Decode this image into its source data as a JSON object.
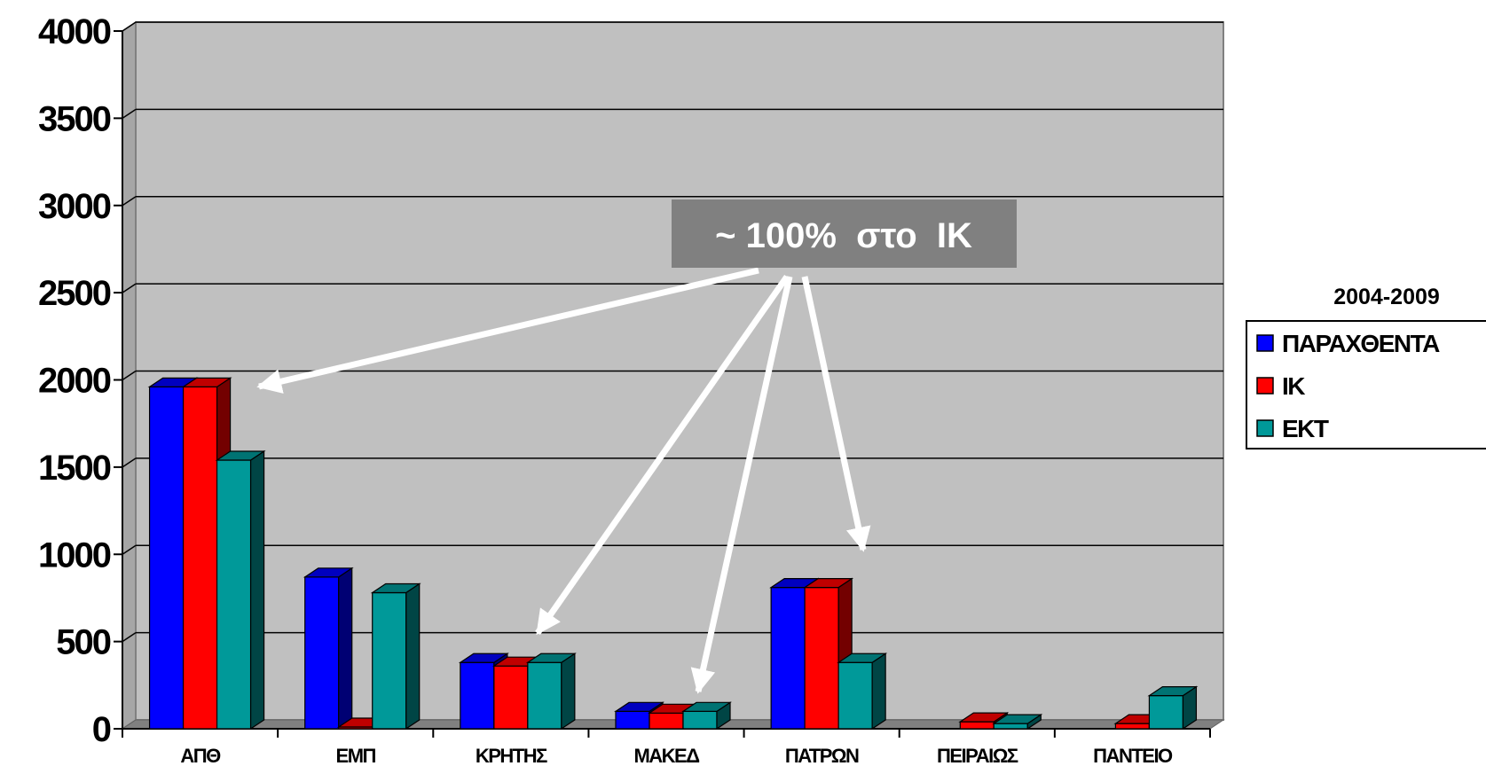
{
  "chart_data": {
    "type": "bar",
    "title": "",
    "xlabel": "",
    "ylabel": "",
    "ylim": [
      0,
      4000
    ],
    "yticks": [
      0,
      500,
      1000,
      1500,
      2000,
      2500,
      3000,
      3500,
      4000
    ],
    "categories": [
      "ΑΠΘ",
      "ΕΜΠ",
      "ΚΡΗΤΗΣ",
      "ΜΑΚΕΔ",
      "ΠΑΤΡΩΝ",
      "ΠΕΙΡΑΙΩΣ",
      "ΠΑΝΤΕΙΟ"
    ],
    "series": [
      {
        "name": "ΠΑΡΑΧΘΕΝΤΑ",
        "color": "#0000ff",
        "values": [
          1960,
          870,
          380,
          100,
          810,
          0,
          0
        ]
      },
      {
        "name": "ΙΚ",
        "color": "#ff0000",
        "values": [
          1960,
          10,
          360,
          90,
          810,
          40,
          30
        ]
      },
      {
        "name": "ΕΚΤ",
        "color": "#009999",
        "values": [
          1540,
          780,
          380,
          100,
          380,
          30,
          190
        ]
      }
    ],
    "grid": true,
    "legend": {
      "title": "2004-2009",
      "position": "right"
    },
    "annotation": {
      "text": "~ 100%  στο  ΙΚ",
      "targets": [
        "ΑΠΘ",
        "ΚΡΗΤΗΣ",
        "ΜΑΚΕΔ",
        "ΠΑΤΡΩΝ"
      ]
    }
  }
}
